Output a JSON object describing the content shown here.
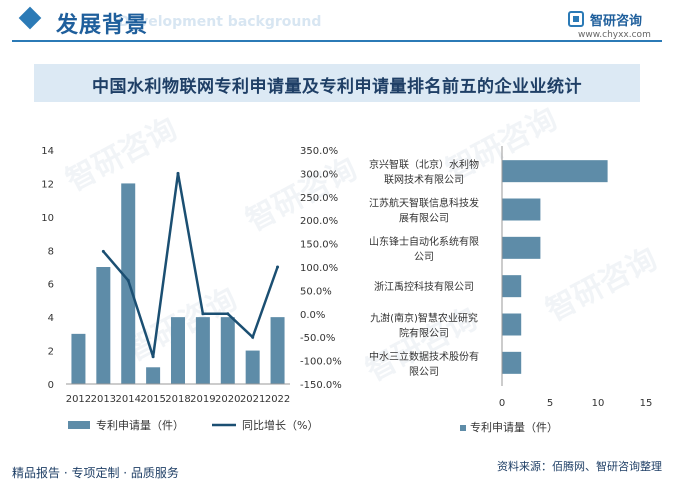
{
  "header": {
    "title": "发展背景",
    "subtitle": "Development background",
    "logo_name": "智研咨询",
    "logo_site": "www.chyxx.com"
  },
  "chart_title": "中国水利物联网专利申请量及专利申请量排名前五的企业业统计",
  "footer": {
    "tagline": "精品报告 · 专项定制 · 品质服务",
    "source": "资料来源：佰腾网、智研咨询整理"
  },
  "watermark_text": "智研咨询",
  "colors": {
    "bar": "#5e8ca8",
    "line": "#1b4f72",
    "title_bg": "#dce9f4",
    "accent": "#2b7ab6"
  },
  "chart_data": [
    {
      "type": "bar+line",
      "categories": [
        "2012",
        "2013",
        "2014",
        "2015",
        "2018",
        "2019",
        "2020",
        "2021",
        "2022"
      ],
      "series": [
        {
          "name": "专利申请量（件）",
          "type": "bar",
          "axis": "left",
          "values": [
            3,
            7,
            12,
            1,
            4,
            4,
            4,
            2,
            4
          ]
        },
        {
          "name": "同比增长（%）",
          "type": "line",
          "axis": "right",
          "values": [
            null,
            133.3,
            71.4,
            -91.7,
            300.0,
            0.0,
            0.0,
            -50.0,
            100.0
          ]
        }
      ],
      "y_left": {
        "min": 0,
        "max": 14,
        "ticks": [
          0,
          2,
          4,
          6,
          8,
          10,
          12,
          14
        ]
      },
      "y_right": {
        "min": -150,
        "max": 350,
        "ticks": [
          -150,
          -100,
          -50,
          0,
          50,
          100,
          150,
          200,
          250,
          300,
          350
        ],
        "tick_labels": [
          "-150.0%",
          "-100.0%",
          "-50.0%",
          "0.0%",
          "50.0%",
          "100.0%",
          "150.0%",
          "200.0%",
          "250.0%",
          "300.0%",
          "350.0%"
        ]
      }
    },
    {
      "type": "bar",
      "orientation": "horizontal",
      "categories": [
        [
          "京兴智联（北京）水利物",
          "联网技术有限公司"
        ],
        [
          "江苏航天智联信息科技发",
          "展有限公司"
        ],
        [
          "山东锋士自动化系统有限",
          "公司"
        ],
        [
          "浙江禹控科技有限公司"
        ],
        [
          "九澍(南京)智慧农业研究",
          "院有限公司"
        ],
        [
          "中水三立数据技术股份有",
          "限公司"
        ]
      ],
      "values": [
        11,
        4,
        4,
        2,
        2,
        2
      ],
      "x_axis": {
        "min": 0,
        "max": 15,
        "ticks": [
          0,
          5,
          10,
          15
        ]
      },
      "legend": "专利申请量（件）"
    }
  ]
}
